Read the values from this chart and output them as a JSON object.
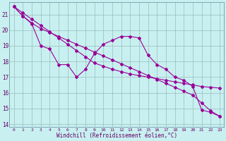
{
  "xlabel": "Windchill (Refroidissement éolien,°C)",
  "bg_color": "#c8f0f0",
  "line_color": "#990099",
  "grid_color": "#99bbbb",
  "xlim": [
    -0.5,
    23.5
  ],
  "ylim": [
    13.8,
    21.8
  ],
  "yticks": [
    14,
    15,
    16,
    17,
    18,
    19,
    20,
    21
  ],
  "xticks": [
    0,
    1,
    2,
    3,
    4,
    5,
    6,
    7,
    8,
    9,
    10,
    11,
    12,
    13,
    14,
    15,
    16,
    17,
    18,
    19,
    20,
    21,
    22,
    23
  ],
  "line1_x": [
    0,
    1,
    2,
    3,
    4,
    5,
    6,
    7,
    8,
    9,
    10,
    11,
    12,
    13,
    14,
    15,
    16,
    17,
    18,
    19,
    20,
    21,
    22,
    23
  ],
  "line1_y": [
    21.5,
    20.9,
    20.4,
    19.0,
    18.8,
    17.8,
    17.8,
    17.0,
    17.5,
    18.5,
    19.1,
    19.35,
    19.6,
    19.6,
    19.5,
    18.4,
    17.8,
    17.5,
    17.0,
    16.8,
    16.4,
    14.9,
    14.75,
    14.5
  ],
  "line2_x": [
    0,
    1,
    2,
    3,
    4,
    5,
    6,
    7,
    8,
    9,
    10,
    11,
    12,
    13,
    14,
    15,
    16,
    17,
    18,
    19,
    20,
    21,
    22,
    23
  ],
  "line2_y": [
    21.5,
    20.9,
    20.45,
    20.1,
    19.85,
    19.6,
    19.35,
    19.1,
    18.85,
    18.6,
    18.35,
    18.1,
    17.85,
    17.6,
    17.35,
    17.1,
    16.85,
    16.6,
    16.35,
    16.1,
    15.85,
    15.35,
    14.85,
    14.5
  ],
  "line3_x": [
    0,
    1,
    2,
    3,
    4,
    5,
    6,
    7,
    8,
    9,
    10,
    11,
    12,
    13,
    14,
    15,
    16,
    17,
    18,
    19,
    20,
    21,
    22,
    23
  ],
  "line3_y": [
    21.5,
    21.1,
    20.7,
    20.3,
    19.9,
    19.5,
    19.1,
    18.7,
    18.3,
    17.9,
    17.7,
    17.5,
    17.35,
    17.2,
    17.1,
    17.0,
    16.9,
    16.8,
    16.7,
    16.6,
    16.5,
    16.4,
    16.35,
    16.3
  ]
}
